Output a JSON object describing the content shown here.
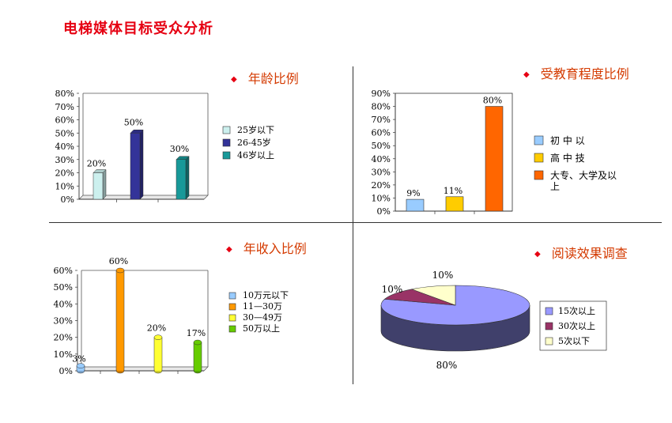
{
  "page": {
    "title": "电梯媒体目标受众分析"
  },
  "chart_data": [
    {
      "type": "bar",
      "title": "年龄比例",
      "categories": [
        "25岁以下",
        "26-45岁",
        "46岁以上"
      ],
      "values": [
        20,
        50,
        30
      ],
      "value_labels": [
        "20%",
        "50%",
        "30%"
      ],
      "colors": [
        "#ccf0ee",
        "#333399",
        "#189999"
      ],
      "yticks": [
        "0%",
        "10%",
        "20%",
        "30%",
        "40%",
        "50%",
        "60%",
        "70%",
        "80%"
      ],
      "ylim": [
        0,
        80
      ],
      "legend": "right",
      "style": "3d-bar"
    },
    {
      "type": "bar",
      "title": "受教育程度比例",
      "categories": [
        "初 中 以",
        "高 中 技",
        "大专、大学及以上"
      ],
      "legend_lines": [
        [
          "初 中 以"
        ],
        [
          "高 中 技"
        ],
        [
          "大专、大学及以",
          "上"
        ]
      ],
      "values": [
        9,
        11,
        80
      ],
      "value_labels": [
        "9%",
        "11%",
        "80%"
      ],
      "colors": [
        "#99ccff",
        "#ffcc00",
        "#ff6600"
      ],
      "yticks": [
        "0%",
        "10%",
        "20%",
        "30%",
        "40%",
        "50%",
        "60%",
        "70%",
        "80%",
        "90%"
      ],
      "ylim": [
        0,
        90
      ],
      "legend": "right",
      "style": "flat-bar"
    },
    {
      "type": "bar",
      "title": "年收入比例",
      "categories": [
        "10万元以下",
        "11—30万",
        "30—49万",
        "50万以上"
      ],
      "values": [
        3,
        60,
        20,
        17
      ],
      "value_labels": [
        "3%",
        "60%",
        "20%",
        "17%"
      ],
      "colors": [
        "#99ccff",
        "#ff9900",
        "#ffff33",
        "#66cc00"
      ],
      "yticks": [
        "0%",
        "10%",
        "20%",
        "30%",
        "40%",
        "50%",
        "60%"
      ],
      "ylim": [
        0,
        60
      ],
      "legend": "right",
      "style": "3d-cylinder"
    },
    {
      "type": "pie",
      "title": "阅读效果调查",
      "categories": [
        "15次以上",
        "30次以上",
        "5次以下"
      ],
      "values": [
        80,
        10,
        10
      ],
      "value_labels": [
        "80%",
        "10%",
        "10%"
      ],
      "colors": [
        "#9999ff",
        "#993366",
        "#ffffcc"
      ],
      "legend": "right",
      "style": "3d-pie"
    }
  ]
}
